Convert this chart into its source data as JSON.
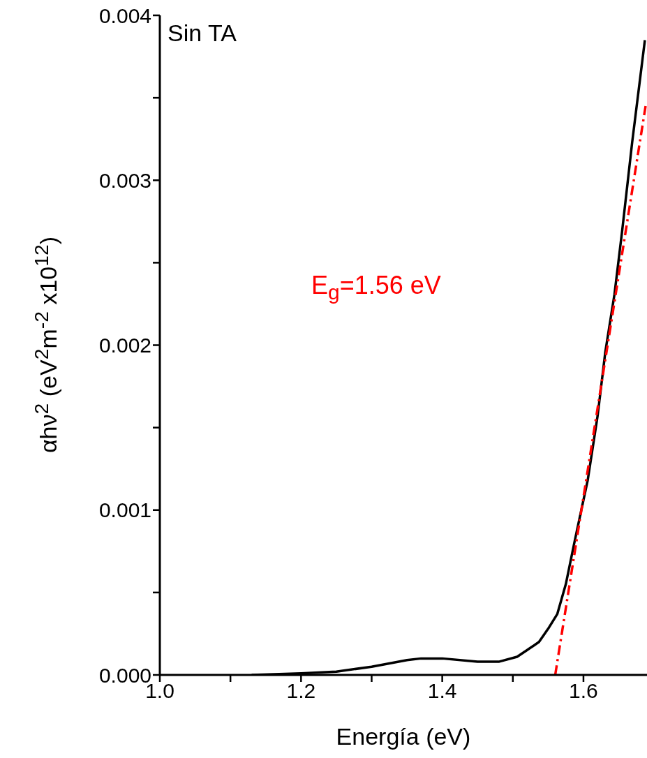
{
  "chart_data": {
    "type": "line",
    "xlabel": "Energía (eV)",
    "ylabel": "αhν$^{2}$ (eV$^{2}$m$^{-2}$ x10$^{12}$)",
    "annotations": [
      "Sin TA",
      "E$_{g}$=1.56 eV"
    ],
    "xlim": [
      1.0,
      1.69
    ],
    "ylim": [
      0,
      0.004
    ],
    "xticks": [
      {
        "value": 1.0,
        "label": "1.0"
      },
      {
        "value": 1.1,
        "label": null
      },
      {
        "value": 1.2,
        "label": "1.2"
      },
      {
        "value": 1.3,
        "label": null
      },
      {
        "value": 1.4,
        "label": "1.4"
      },
      {
        "value": 1.5,
        "label": null
      },
      {
        "value": 1.6,
        "label": "1.6"
      }
    ],
    "yticks": [
      {
        "value": 0,
        "label": "0.000"
      },
      {
        "value": 0.0005,
        "label": null
      },
      {
        "value": 0.001,
        "label": "0.001"
      },
      {
        "value": 0.0015,
        "label": null
      },
      {
        "value": 0.002,
        "label": "0.002"
      },
      {
        "value": 0.0025,
        "label": null
      },
      {
        "value": 0.003,
        "label": "0.003"
      },
      {
        "value": 0.0035,
        "label": null
      },
      {
        "value": 0.004,
        "label": "0.004"
      }
    ],
    "marker": "none",
    "series": [
      {
        "color": "#000000",
        "line_style": "solid",
        "x": [
          1.13,
          1.2,
          1.25,
          1.3,
          1.35,
          1.37,
          1.4,
          1.45,
          1.48,
          1.506,
          1.52,
          1.537,
          1.55,
          1.563,
          1.575,
          1.587,
          1.606,
          1.62,
          1.631,
          1.644,
          1.655,
          1.669,
          1.687
        ],
        "values": [
          0,
          1e-05,
          2e-05,
          5e-05,
          9e-05,
          0.0001,
          0.0001,
          8e-05,
          8e-05,
          0.00011,
          0.00015,
          0.0002,
          0.00028,
          0.00037,
          0.00055,
          0.0008,
          0.00118,
          0.00157,
          0.00196,
          0.00231,
          0.0027,
          0.00323,
          0.00385
        ]
      },
      {
        "color": "#ff0000",
        "line_style": "dashed",
        "x": [
          1.56,
          1.688
        ],
        "values": [
          0,
          0.00345
        ]
      }
    ]
  }
}
